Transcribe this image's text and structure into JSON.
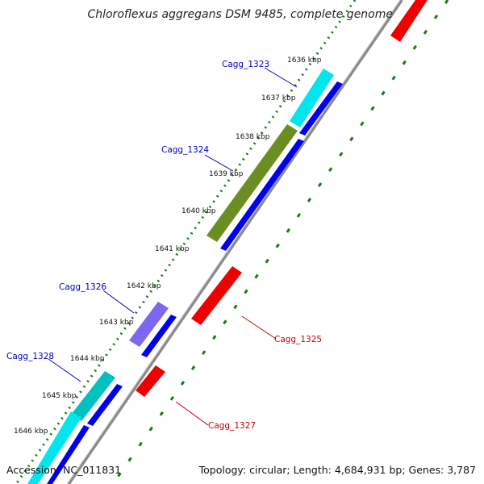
{
  "title": "Chloroflexus aggregans DSM 9485, complete genome",
  "footer": {
    "accession": "Accession: NC_011831",
    "topology": "Topology: circular; Length: 4,684,931 bp; Genes: 3,787"
  },
  "colors": {
    "backbone": "#999999",
    "ticks": "#1a7a1a",
    "forward_cds": "#0000ee",
    "reverse_cds": "#ee0000",
    "label_forward": "#0000bb",
    "label_reverse": "#cc0000"
  },
  "kbp_labels": [
    "1636 kbp",
    "1637 kbp",
    "1638 kbp",
    "1639 kbp",
    "1640 kbp",
    "1641 kbp",
    "1642 kbp",
    "1643 kbp",
    "1644 kbp",
    "1645 kbp",
    "1646 kbp"
  ],
  "genes": [
    {
      "name": "Cagg_1323",
      "strand": "forward",
      "color": "#00e5ee"
    },
    {
      "name": "Cagg_1324",
      "strand": "forward",
      "color": "#6b8e23"
    },
    {
      "name": "Cagg_1325",
      "strand": "reverse",
      "color": "#ee0000"
    },
    {
      "name": "Cagg_1326",
      "strand": "forward",
      "color": "#7b68ee"
    },
    {
      "name": "Cagg_1327",
      "strand": "reverse",
      "color": "#ee0000"
    },
    {
      "name": "Cagg_1328",
      "strand": "forward",
      "color": "#00c0c0"
    }
  ]
}
